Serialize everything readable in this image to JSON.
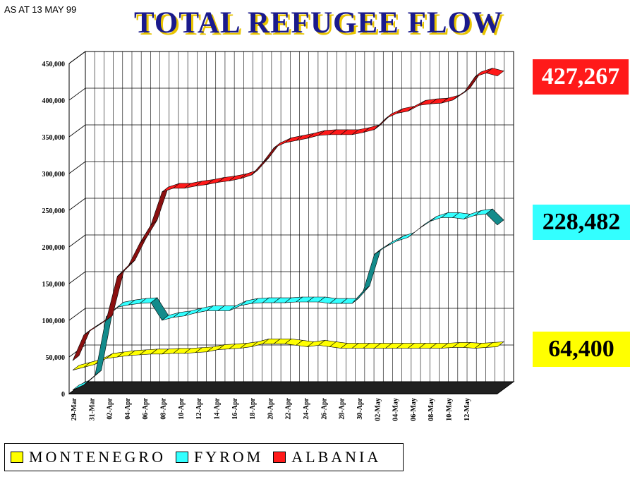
{
  "as_at": "AS AT 13 MAY 99",
  "title": "TOTAL REFUGEE FLOW",
  "callouts": {
    "albania": "427,267",
    "fyrom": "228,482",
    "montenegro": "64,400"
  },
  "legend": [
    {
      "label": "MONTENEGRO",
      "color": "#ffff00"
    },
    {
      "label": "FYROM",
      "color": "#33ffff"
    },
    {
      "label": "ALBANIA",
      "color": "#ff1a1a"
    }
  ],
  "chart_data": {
    "type": "area",
    "title": "TOTAL REFUGEE FLOW",
    "y_ticks": [
      "0",
      "50,000",
      "100,000",
      "150,000",
      "200,000",
      "250,000",
      "300,000",
      "350,000",
      "400,000",
      "450,000"
    ],
    "ylim": [
      0,
      450000
    ],
    "x_tick_labels": [
      "29-Mar",
      "31-Mar",
      "02-Apr",
      "04-Apr",
      "06-Apr",
      "08-Apr",
      "10-Apr",
      "12-Apr",
      "14-Apr",
      "16-Apr",
      "18-Apr",
      "20-Apr",
      "22-Apr",
      "24-Apr",
      "26-Apr",
      "28-Apr",
      "30-Apr",
      "02-May",
      "04-May",
      "06-May",
      "08-May",
      "10-May",
      "12-May"
    ],
    "grid": true,
    "series": [
      {
        "name": "ALBANIA",
        "color": "#ff1a1a",
        "values": [
          45000,
          80000,
          90000,
          100000,
          160000,
          175000,
          205000,
          230000,
          275000,
          280000,
          280000,
          283000,
          285000,
          288000,
          290000,
          293000,
          298000,
          315000,
          335000,
          342000,
          345000,
          348000,
          352000,
          353000,
          353000,
          353000,
          356000,
          360000,
          375000,
          382000,
          385000,
          393000,
          395000,
          396000,
          400000,
          410000,
          432000,
          437000,
          433000
        ]
      },
      {
        "name": "FYROM",
        "color": "#33ffff",
        "values": [
          5000,
          12000,
          25000,
          105000,
          118000,
          121000,
          123000,
          124000,
          100000,
          104000,
          106000,
          110000,
          113000,
          113000,
          113000,
          120000,
          123000,
          124000,
          124000,
          124000,
          125000,
          125000,
          125000,
          123000,
          123000,
          123000,
          140000,
          190000,
          200000,
          208000,
          213000,
          225000,
          235000,
          240000,
          240000,
          238000,
          243000,
          245000,
          230000
        ]
      },
      {
        "name": "MONTENEGRO",
        "color": "#ffff00",
        "values": [
          32000,
          36000,
          40000,
          48000,
          50000,
          52000,
          53000,
          54000,
          54000,
          55000,
          55000,
          56000,
          57000,
          60000,
          61000,
          62000,
          64000,
          68000,
          68000,
          68000,
          66000,
          64000,
          66000,
          64000,
          62000,
          62000,
          62000,
          62000,
          62000,
          62000,
          62000,
          62000,
          62000,
          62000,
          63000,
          63000,
          62000,
          63000,
          64000
        ]
      }
    ]
  }
}
